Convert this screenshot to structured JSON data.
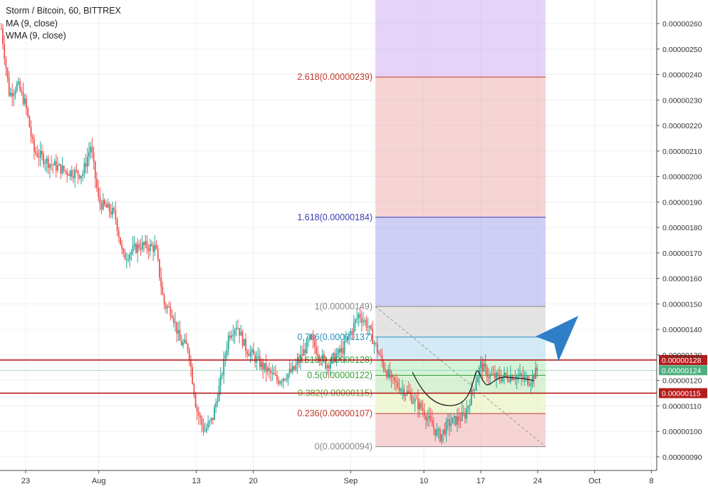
{
  "header": {
    "symbol": "Storm / Bitcoin, 60, BITTREX",
    "ma": "MA (9, close)",
    "wma": "WMA (9, close)"
  },
  "colors": {
    "up": "#26a69a",
    "down": "#ef5350",
    "support": "#b71c1c",
    "arrow": "#2f7fc8",
    "current": "#4caf7d"
  },
  "chart_data": {
    "type": "candlestick",
    "title": "Storm / Bitcoin, 60, BITTREX",
    "indicators": [
      "MA (9, close)",
      "WMA (9, close)"
    ],
    "grid": true,
    "ylim": [
      8.7e-07,
      2.64e-06
    ],
    "y_ticks": [
      "0.00000260",
      "0.00000250",
      "0.00000240",
      "0.00000230",
      "0.00000220",
      "0.00000210",
      "0.00000200",
      "0.00000190",
      "0.00000180",
      "0.00000170",
      "0.00000160",
      "0.00000150",
      "0.00000140",
      "0.00000130",
      "0.00000120",
      "0.00000110",
      "0.00000100",
      "0.00000090"
    ],
    "x_ticks": [
      "23",
      "Aug",
      "13",
      "20",
      "Sep",
      "10",
      "17",
      "24",
      "Oct",
      "8"
    ],
    "fib_levels": [
      {
        "label": "2.618(0.00000239)",
        "ratio": 2.618,
        "price": 2.39e-06
      },
      {
        "label": "1.618(0.00000184)",
        "ratio": 1.618,
        "price": 1.84e-06
      },
      {
        "label": "1(0.00000149)",
        "ratio": 1,
        "price": 1.49e-06
      },
      {
        "label": "0.786(0.00000137)",
        "ratio": 0.786,
        "price": 1.37e-06
      },
      {
        "label": "0.618(0.00000128)",
        "ratio": 0.618,
        "price": 1.28e-06
      },
      {
        "label": "0.5(0.00000122)",
        "ratio": 0.5,
        "price": 1.22e-06
      },
      {
        "label": "0.382(0.00000115)",
        "ratio": 0.382,
        "price": 1.15e-06
      },
      {
        "label": "0.236(0.00000107)",
        "ratio": 0.236,
        "price": 1.07e-06
      },
      {
        "label": "0(0.00000094)",
        "ratio": 0,
        "price": 9.4e-07
      }
    ],
    "horizontal_lines": [
      {
        "price": 1.28e-06,
        "tag": "0.00000128"
      },
      {
        "price": 1.15e-06,
        "tag": "0.00000115"
      }
    ],
    "current_price": {
      "price": 1.24e-06,
      "tag": "0.00000124"
    },
    "price_path": [
      [
        "Jul 20",
        2.58e-06
      ],
      [
        "Jul 21",
        2.32e-06
      ],
      [
        "Jul 22",
        2.36e-06
      ],
      [
        "Jul 23",
        2.28e-06
      ],
      [
        "Jul 24",
        2.1e-06
      ],
      [
        "Jul 26",
        2.05e-06
      ],
      [
        "Jul 28",
        2.02e-06
      ],
      [
        "Jul 30",
        2.01e-06
      ],
      [
        "Jul 31",
        2.12e-06
      ],
      [
        "Aug 1",
        1.9e-06
      ],
      [
        "Aug 3",
        1.85e-06
      ],
      [
        "Aug 4",
        1.68e-06
      ],
      [
        "Aug 6",
        1.73e-06
      ],
      [
        "Aug 8",
        1.72e-06
      ],
      [
        "Aug 9",
        1.5e-06
      ],
      [
        "Aug 10",
        1.47e-06
      ],
      [
        "Aug 11",
        1.35e-06
      ],
      [
        "Aug 12",
        1.33e-06
      ],
      [
        "Aug 13",
        1.09e-06
      ],
      [
        "Aug 14",
        1e-06
      ],
      [
        "Aug 15",
        1.05e-06
      ],
      [
        "Aug 16",
        1.2e-06
      ],
      [
        "Aug 17",
        1.38e-06
      ],
      [
        "Aug 18",
        1.42e-06
      ],
      [
        "Aug 19",
        1.33e-06
      ],
      [
        "Aug 21",
        1.26e-06
      ],
      [
        "Aug 23",
        1.2e-06
      ],
      [
        "Aug 25",
        1.24e-06
      ],
      [
        "Aug 27",
        1.36e-06
      ],
      [
        "Aug 29",
        1.26e-06
      ],
      [
        "Aug 31",
        1.32e-06
      ],
      [
        "Sep 2",
        1.46e-06
      ],
      [
        "Sep 3",
        1.42e-06
      ],
      [
        "Sep 5",
        1.26e-06
      ],
      [
        "Sep 6",
        1.2e-06
      ],
      [
        "Sep 8",
        1.15e-06
      ],
      [
        "Sep 10",
        1.08e-06
      ],
      [
        "Sep 11",
        1.02e-06
      ],
      [
        "Sep 12",
        9.8e-07
      ],
      [
        "Sep 13",
        1.03e-06
      ],
      [
        "Sep 15",
        1.06e-06
      ],
      [
        "Sep 16",
        1.16e-06
      ],
      [
        "Sep 17",
        1.26e-06
      ],
      [
        "Sep 18",
        1.22e-06
      ],
      [
        "Sep 19",
        1.21e-06
      ],
      [
        "Sep 21",
        1.22e-06
      ],
      [
        "Sep 23",
        1.2e-06
      ],
      [
        "Sep 24",
        1.24e-06
      ]
    ]
  }
}
